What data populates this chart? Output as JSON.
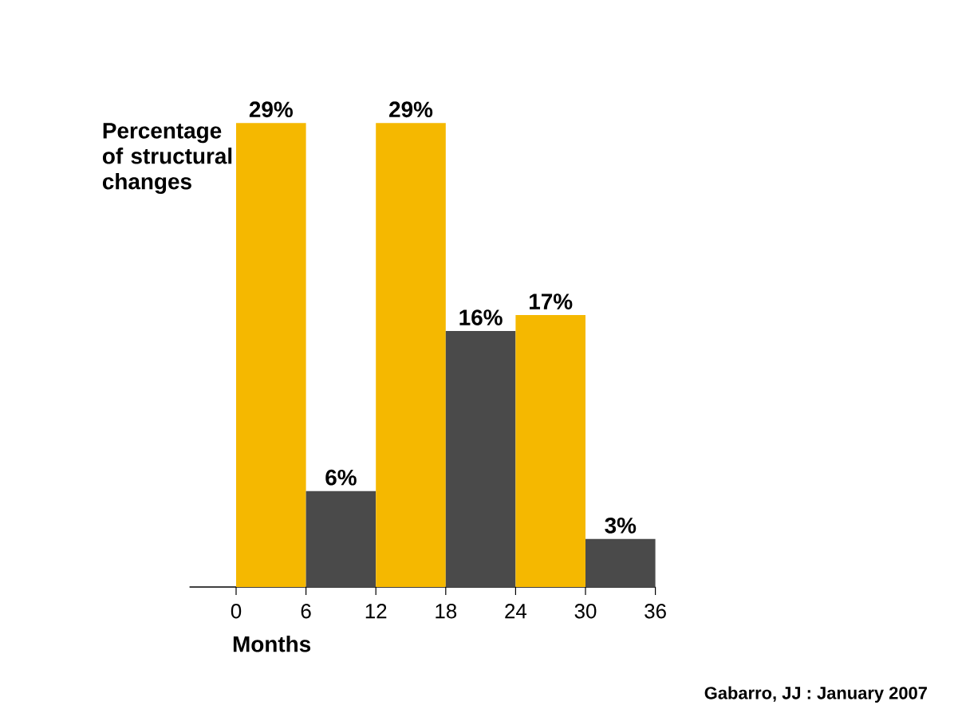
{
  "chart_data": {
    "type": "bar",
    "ylabel": "Percentage of structural changes",
    "xlabel": "Months",
    "x": [
      3,
      9,
      15,
      21,
      27,
      33
    ],
    "values": [
      29,
      6,
      29,
      16,
      17,
      3
    ],
    "colors": [
      "#f5b800",
      "#4a4a4a",
      "#f5b800",
      "#4a4a4a",
      "#f5b800",
      "#4a4a4a"
    ],
    "value_labels": [
      "29%",
      "6%",
      "29%",
      "16%",
      "17%",
      "3%"
    ],
    "xlim": [
      -4,
      36
    ],
    "xticks": [
      0,
      6,
      12,
      18,
      24,
      30,
      36
    ],
    "annotations": [
      "Gabarro, JJ : January 2007"
    ]
  }
}
